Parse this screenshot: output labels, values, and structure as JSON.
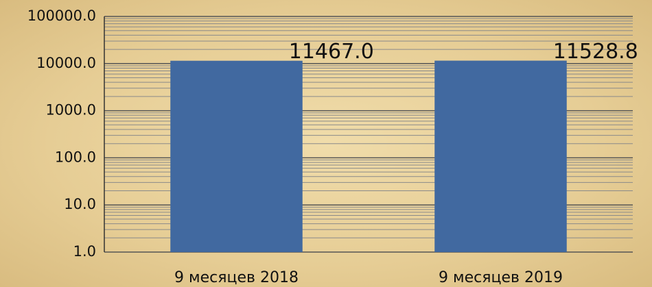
{
  "chart_data": {
    "type": "bar",
    "log_scale": true,
    "grid": true,
    "minor_grid": true,
    "categories": [
      "9 месяцев 2018",
      "9 месяцев 2019"
    ],
    "values": [
      11467.0,
      11528.8
    ],
    "value_labels": [
      "11467.0",
      "11528.8"
    ],
    "color": "#4169a0",
    "ylim": [
      1,
      100000
    ],
    "yticks": [
      {
        "value": 1,
        "label": "1.0"
      },
      {
        "value": 10,
        "label": "10.0"
      },
      {
        "value": 100,
        "label": "100.0"
      },
      {
        "value": 1000,
        "label": "1000.0"
      },
      {
        "value": 10000,
        "label": "10000.0"
      },
      {
        "value": 100000,
        "label": "100000.0"
      }
    ]
  }
}
